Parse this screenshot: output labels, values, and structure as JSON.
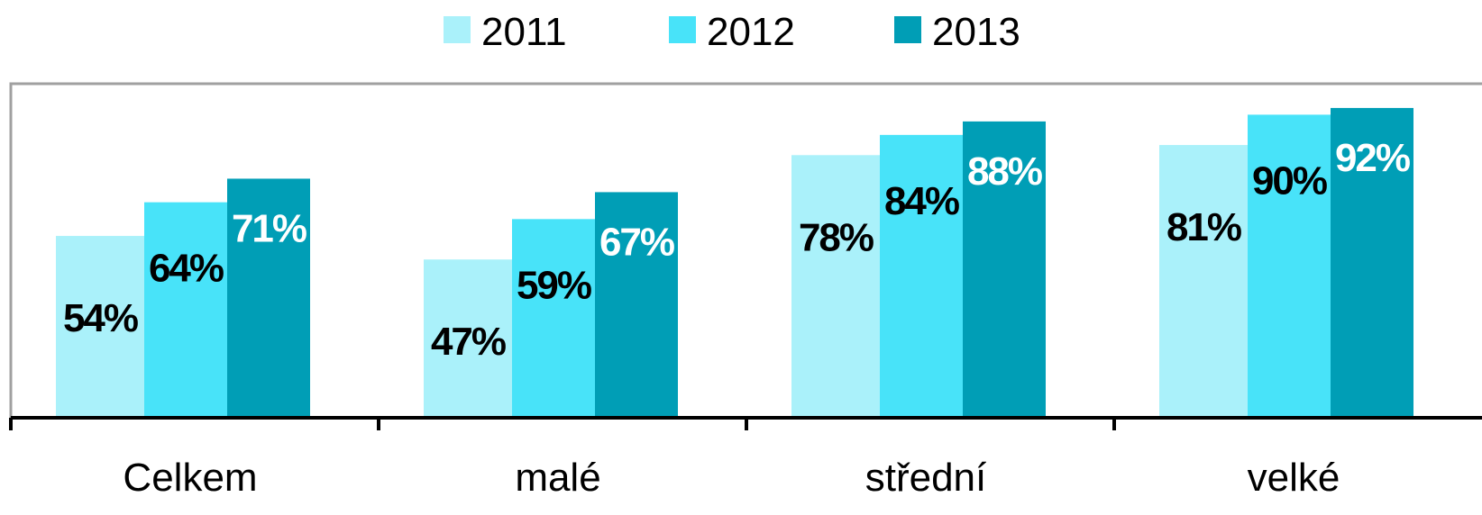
{
  "chart_data": {
    "type": "bar",
    "categories": [
      "Celkem",
      "malé",
      "střední",
      "velké"
    ],
    "series": [
      {
        "name": "2011",
        "values": [
          54,
          47,
          78,
          81
        ],
        "color": "#aaf1fa",
        "label_color": "#000000"
      },
      {
        "name": "2012",
        "values": [
          64,
          59,
          84,
          90
        ],
        "color": "#48e3f9",
        "label_color": "#000000"
      },
      {
        "name": "2013",
        "values": [
          71,
          67,
          88,
          92
        ],
        "color": "#009eb6",
        "label_color": "#ffffff"
      }
    ],
    "value_labels": [
      [
        "54%",
        "47%",
        "78%",
        "81%"
      ],
      [
        "64%",
        "59%",
        "84%",
        "90%"
      ],
      [
        "71%",
        "67%",
        "88%",
        "92%"
      ]
    ],
    "ylim": [
      0,
      100
    ],
    "legend_position": "top-center",
    "grid": false,
    "axis_color": "#000000",
    "frame_color": "#a0a0a0"
  }
}
